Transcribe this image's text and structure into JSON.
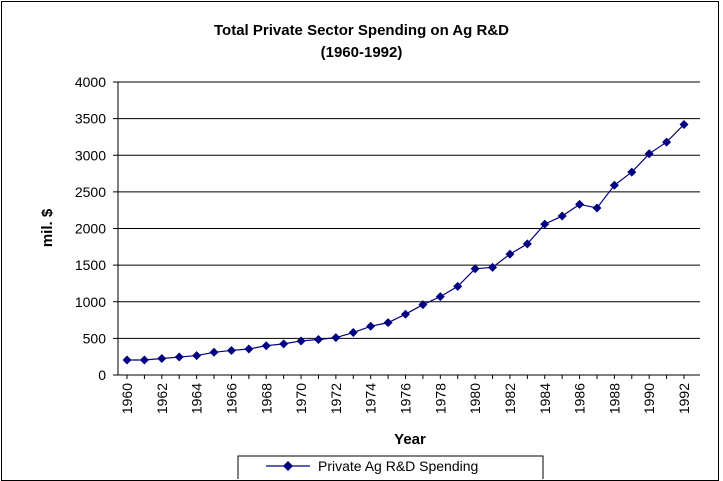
{
  "chart_data": {
    "type": "line",
    "title_line1": "Total Private Sector Spending on Ag R&D",
    "title_line2": "(1960-1992)",
    "xlabel": "Year",
    "ylabel": "mil. $",
    "ylim": [
      0,
      4000
    ],
    "yticks": [
      0,
      500,
      1000,
      1500,
      2000,
      2500,
      3000,
      3500,
      4000
    ],
    "xtick_labels": [
      "1960",
      "1962",
      "1964",
      "1966",
      "1968",
      "1970",
      "1972",
      "1974",
      "1976",
      "1978",
      "1980",
      "1982",
      "1984",
      "1986",
      "1988",
      "1990",
      "1992"
    ],
    "grid": "horizontal",
    "legend_position": "bottom",
    "colors": {
      "series": "#000080"
    },
    "x": [
      1960,
      1961,
      1962,
      1963,
      1964,
      1965,
      1966,
      1967,
      1968,
      1969,
      1970,
      1971,
      1972,
      1973,
      1974,
      1975,
      1976,
      1977,
      1978,
      1979,
      1980,
      1981,
      1982,
      1983,
      1984,
      1985,
      1986,
      1987,
      1988,
      1989,
      1990,
      1991,
      1992
    ],
    "series": [
      {
        "name": "Private Ag R&D Spending",
        "values": [
          205,
          205,
          225,
          245,
          265,
          310,
          335,
          355,
          400,
          425,
          465,
          485,
          510,
          580,
          665,
          715,
          830,
          960,
          1070,
          1210,
          1450,
          1470,
          1650,
          1790,
          2060,
          2170,
          2330,
          2280,
          2590,
          2770,
          3020,
          3180,
          3420
        ]
      }
    ]
  }
}
